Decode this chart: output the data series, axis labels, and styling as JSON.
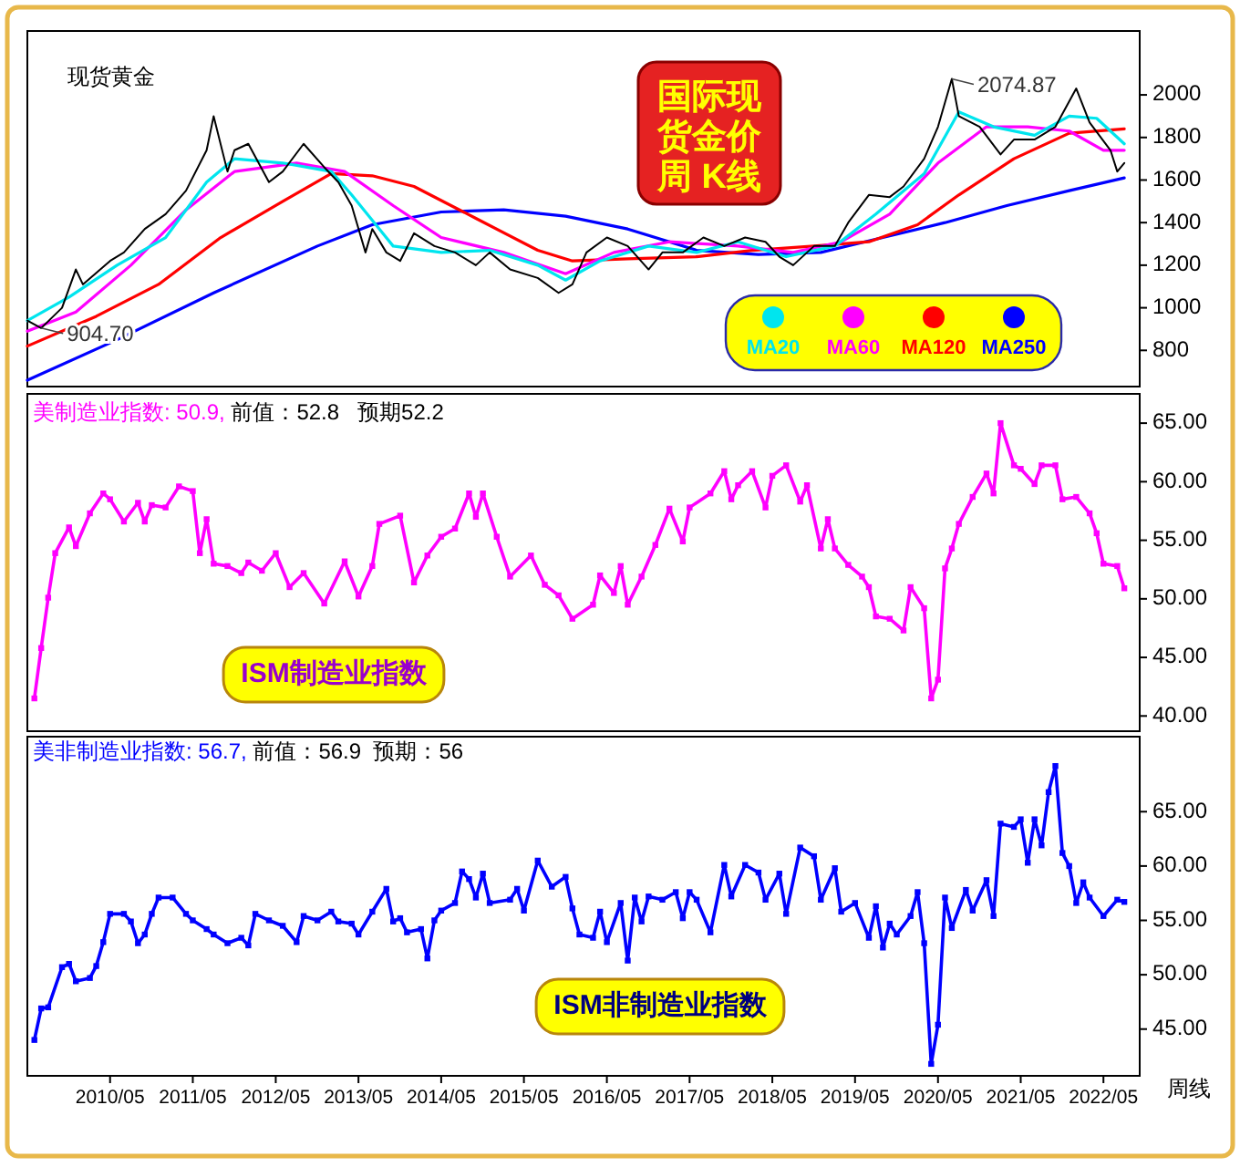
{
  "chart_data": [
    {
      "type": "line",
      "title": "现货黄金",
      "xlim": [
        "2009-05-01",
        "2022-10-08"
      ],
      "ylim": [
        630,
        2300
      ],
      "yticks": [
        800,
        1000,
        1200,
        1400,
        1600,
        1800,
        2000
      ],
      "tick_labels": "y",
      "legend": "bottom right",
      "annotations": [
        {
          "text": "2074.87",
          "x": "2020-07",
          "y": 2074.87
        },
        {
          "text": "904.70",
          "x": "2009-07",
          "y": 904.7
        },
        "国际现货金价周 K线"
      ],
      "series": [
        {
          "color": "#000000",
          "x": [
            "2009-05",
            "2009-07",
            "2009-10",
            "2009-12",
            "2010-01",
            "2010-05",
            "2010-07",
            "2010-10",
            "2011-01",
            "2011-04",
            "2011-07",
            "2011-08",
            "2011-10",
            "2011-11",
            "2012-01",
            "2012-04",
            "2012-06",
            "2012-09",
            "2012-12",
            "2013-02",
            "2013-04",
            "2013-06",
            "2013-07",
            "2013-09",
            "2013-11",
            "2014-01",
            "2014-04",
            "2014-07",
            "2014-10",
            "2014-12",
            "2015-03",
            "2015-07",
            "2015-10",
            "2015-12",
            "2016-02",
            "2016-05",
            "2016-08",
            "2016-11",
            "2017-01",
            "2017-04",
            "2017-07",
            "2017-10",
            "2018-01",
            "2018-04",
            "2018-06",
            "2018-08",
            "2018-11",
            "2019-02",
            "2019-04",
            "2019-07",
            "2019-10",
            "2019-12",
            "2020-03",
            "2020-05",
            "2020-07",
            "2020-08",
            "2020-11",
            "2021-02",
            "2021-04",
            "2021-07",
            "2021-10",
            "2022-01",
            "2022-03",
            "2022-06",
            "2022-07",
            "2022-08"
          ],
          "values": [
            940,
            904.7,
            1000,
            1180,
            1110,
            1220,
            1260,
            1370,
            1440,
            1550,
            1740,
            1900,
            1640,
            1740,
            1770,
            1590,
            1640,
            1770,
            1660,
            1590,
            1480,
            1260,
            1370,
            1260,
            1220,
            1350,
            1290,
            1260,
            1200,
            1260,
            1180,
            1140,
            1070,
            1110,
            1260,
            1330,
            1290,
            1180,
            1260,
            1260,
            1330,
            1290,
            1330,
            1310,
            1240,
            1200,
            1290,
            1290,
            1400,
            1530,
            1520,
            1570,
            1700,
            1850,
            2074.87,
            1900,
            1850,
            1720,
            1790,
            1790,
            1850,
            2030,
            1870,
            1740,
            1640,
            1680
          ]
        },
        {
          "name": "MA20",
          "color": "#00e5ee",
          "x": [
            "2009-05",
            "2009-11",
            "2010-06",
            "2011-01",
            "2011-07",
            "2011-11",
            "2012-06",
            "2013-01",
            "2013-04",
            "2013-10",
            "2014-05",
            "2014-12",
            "2015-07",
            "2015-11",
            "2016-04",
            "2016-11",
            "2017-06",
            "2017-12",
            "2018-07",
            "2019-02",
            "2019-08",
            "2020-03",
            "2020-08",
            "2021-01",
            "2021-07",
            "2021-12",
            "2022-04",
            "2022-08"
          ],
          "values": [
            940,
            1050,
            1200,
            1330,
            1590,
            1700,
            1680,
            1640,
            1530,
            1290,
            1260,
            1270,
            1200,
            1130,
            1220,
            1290,
            1260,
            1310,
            1240,
            1290,
            1440,
            1630,
            1920,
            1850,
            1810,
            1900,
            1890,
            1770
          ]
        },
        {
          "name": "MA60",
          "color": "#ff00ff",
          "x": [
            "2009-05",
            "2009-12",
            "2010-08",
            "2011-04",
            "2011-11",
            "2012-08",
            "2013-03",
            "2013-10",
            "2014-05",
            "2015-02",
            "2015-11",
            "2016-06",
            "2017-02",
            "2017-12",
            "2018-08",
            "2019-03",
            "2019-10",
            "2020-05",
            "2020-12",
            "2021-06",
            "2021-12",
            "2022-05",
            "2022-08"
          ],
          "values": [
            890,
            980,
            1200,
            1460,
            1640,
            1680,
            1640,
            1480,
            1330,
            1260,
            1160,
            1260,
            1310,
            1290,
            1260,
            1310,
            1440,
            1680,
            1850,
            1850,
            1830,
            1740,
            1740
          ]
        },
        {
          "name": "MA120",
          "color": "#ff0000",
          "x": [
            "2009-05",
            "2010-03",
            "2010-12",
            "2011-09",
            "2012-06",
            "2013-01",
            "2013-07",
            "2014-01",
            "2014-10",
            "2015-07",
            "2015-12",
            "2016-08",
            "2017-06",
            "2018-02",
            "2018-11",
            "2019-07",
            "2020-02",
            "2020-08",
            "2021-04",
            "2021-12",
            "2022-08"
          ],
          "values": [
            820,
            960,
            1110,
            1330,
            1500,
            1630,
            1620,
            1570,
            1420,
            1270,
            1220,
            1230,
            1240,
            1270,
            1290,
            1310,
            1390,
            1530,
            1700,
            1820,
            1840
          ]
        },
        {
          "name": "MA250",
          "color": "#0000ff",
          "x": [
            "2009-05",
            "2010-06",
            "2011-08",
            "2012-11",
            "2013-07",
            "2014-05",
            "2015-02",
            "2015-11",
            "2016-08",
            "2017-06",
            "2018-03",
            "2018-12",
            "2019-09",
            "2020-06",
            "2021-03",
            "2021-12",
            "2022-08"
          ],
          "values": [
            660,
            850,
            1070,
            1290,
            1390,
            1450,
            1460,
            1430,
            1370,
            1270,
            1250,
            1260,
            1330,
            1400,
            1480,
            1550,
            1610
          ]
        }
      ]
    },
    {
      "type": "line",
      "title": "美制造业指数: 50.9,",
      "subtitle": " 前值：52.8   预期52.2",
      "xlim": [
        "2009-05-01",
        "2022-10-08"
      ],
      "ylim": [
        38.7,
        67.5
      ],
      "yticks": [
        {
          "value": 40,
          "label": "40.00"
        },
        {
          "value": 45,
          "label": "45.00"
        },
        {
          "value": 50,
          "label": "50.00"
        },
        {
          "value": 55,
          "label": "55.00"
        },
        {
          "value": 60,
          "label": "60.00"
        },
        {
          "value": 65,
          "label": "65.00"
        }
      ],
      "tick_labels": "y",
      "marker": "square",
      "annotations": [
        "ISM制造业指数"
      ],
      "series": [
        {
          "color": "#ff00ff",
          "x": [
            "2009-06",
            "2009-07",
            "2009-08",
            "2009-09",
            "2009-11",
            "2009-12",
            "2010-02",
            "2010-04",
            "2010-05",
            "2010-07",
            "2010-09",
            "2010-10",
            "2010-11",
            "2011-01",
            "2011-03",
            "2011-05",
            "2011-06",
            "2011-07",
            "2011-08",
            "2011-10",
            "2011-12",
            "2012-01",
            "2012-03",
            "2012-05",
            "2012-07",
            "2012-09",
            "2012-12",
            "2013-03",
            "2013-05",
            "2013-07",
            "2013-08",
            "2013-11",
            "2014-01",
            "2014-03",
            "2014-05",
            "2014-07",
            "2014-09",
            "2014-10",
            "2014-11",
            "2015-01",
            "2015-03",
            "2015-06",
            "2015-08",
            "2015-10",
            "2015-12",
            "2016-03",
            "2016-04",
            "2016-06",
            "2016-07",
            "2016-08",
            "2016-10",
            "2016-12",
            "2017-02",
            "2017-04",
            "2017-05",
            "2017-08",
            "2017-10",
            "2017-11",
            "2017-12",
            "2018-02",
            "2018-04",
            "2018-05",
            "2018-07",
            "2018-09",
            "2018-10",
            "2018-12",
            "2019-01",
            "2019-02",
            "2019-04",
            "2019-06",
            "2019-07",
            "2019-08",
            "2019-10",
            "2019-12",
            "2020-01",
            "2020-03",
            "2020-04",
            "2020-05",
            "2020-06",
            "2020-07",
            "2020-08",
            "2020-10",
            "2020-12",
            "2021-01",
            "2021-02",
            "2021-04",
            "2021-05",
            "2021-07",
            "2021-08",
            "2021-10",
            "2021-11",
            "2022-01",
            "2022-03",
            "2022-04",
            "2022-05",
            "2022-07",
            "2022-08"
          ],
          "values": [
            41.5,
            45.8,
            50.1,
            53.9,
            56.1,
            54.5,
            57.3,
            59.0,
            58.5,
            56.6,
            58.2,
            56.6,
            58.0,
            57.8,
            59.6,
            59.2,
            53.9,
            56.8,
            53.0,
            52.8,
            52.2,
            53.1,
            52.4,
            53.9,
            51.0,
            52.2,
            49.6,
            53.2,
            50.2,
            52.8,
            56.4,
            57.1,
            51.4,
            53.7,
            55.3,
            56.0,
            59.0,
            57.0,
            59.0,
            55.3,
            51.9,
            53.7,
            51.2,
            50.3,
            48.3,
            49.5,
            52.0,
            50.5,
            52.8,
            49.5,
            51.9,
            54.6,
            57.7,
            54.9,
            57.8,
            59.0,
            60.9,
            58.5,
            59.7,
            60.9,
            57.8,
            60.5,
            61.4,
            58.3,
            59.7,
            54.3,
            56.8,
            54.3,
            52.9,
            51.9,
            51.0,
            48.5,
            48.3,
            47.3,
            51.0,
            49.2,
            41.5,
            43.1,
            52.6,
            54.3,
            56.4,
            58.7,
            60.7,
            59.0,
            65.0,
            61.4,
            61.1,
            59.8,
            61.4,
            61.4,
            58.5,
            58.7,
            57.3,
            55.6,
            53.0,
            52.8,
            50.9
          ]
        }
      ]
    },
    {
      "type": "line",
      "title": "美非制造业指数: 56.7,",
      "subtitle": " 前值：56.9  预期：56",
      "xlim": [
        "2009-05-01",
        "2022-10-08"
      ],
      "ylim": [
        40.7,
        71.9
      ],
      "yticks": [
        {
          "value": 45,
          "label": "45.00"
        },
        {
          "value": 50,
          "label": "50.00"
        },
        {
          "value": 55,
          "label": "55.00"
        },
        {
          "value": 60,
          "label": "60.00"
        },
        {
          "value": 65,
          "label": "65.00"
        }
      ],
      "xticks": [
        {
          "value": "2010-05",
          "label": "2010/05"
        },
        {
          "value": "2011-05",
          "label": "2011/05"
        },
        {
          "value": "2012-05",
          "label": "2012/05"
        },
        {
          "value": "2013-05",
          "label": "2013/05"
        },
        {
          "value": "2014-05",
          "label": "2014/05"
        },
        {
          "value": "2015-05",
          "label": "2015/05"
        },
        {
          "value": "2016-05",
          "label": "2016/05"
        },
        {
          "value": "2017-05",
          "label": "2017/05"
        },
        {
          "value": "2018-05",
          "label": "2018/05"
        },
        {
          "value": "2019-05",
          "label": "2019/05"
        },
        {
          "value": "2020-05",
          "label": "2020/05"
        },
        {
          "value": "2021-05",
          "label": "2021/05"
        },
        {
          "value": "2022-05",
          "label": "2022/05"
        }
      ],
      "marker": "square",
      "annotations": [
        "ISM非制造业指数",
        "周线"
      ],
      "series": [
        {
          "color": "#0000ff",
          "x": [
            "2009-06",
            "2009-07",
            "2009-08",
            "2009-10",
            "2009-11",
            "2009-12",
            "2010-02",
            "2010-03",
            "2010-04",
            "2010-05",
            "2010-07",
            "2010-08",
            "2010-09",
            "2010-10",
            "2010-11",
            "2010-12",
            "2011-02",
            "2011-04",
            "2011-05",
            "2011-07",
            "2011-08",
            "2011-10",
            "2011-12",
            "2012-01",
            "2012-02",
            "2012-04",
            "2012-06",
            "2012-08",
            "2012-09",
            "2012-11",
            "2013-01",
            "2013-02",
            "2013-04",
            "2013-05",
            "2013-07",
            "2013-09",
            "2013-10",
            "2013-11",
            "2013-12",
            "2014-02",
            "2014-03",
            "2014-04",
            "2014-05",
            "2014-07",
            "2014-08",
            "2014-09",
            "2014-10",
            "2014-11",
            "2014-12",
            "2015-03",
            "2015-04",
            "2015-05",
            "2015-07",
            "2015-09",
            "2015-11",
            "2015-12",
            "2016-01",
            "2016-03",
            "2016-04",
            "2016-05",
            "2016-07",
            "2016-08",
            "2016-09",
            "2016-10",
            "2016-11",
            "2017-01",
            "2017-03",
            "2017-04",
            "2017-05",
            "2017-06",
            "2017-08",
            "2017-10",
            "2017-11",
            "2018-01",
            "2018-03",
            "2018-04",
            "2018-06",
            "2018-07",
            "2018-09",
            "2018-11",
            "2018-12",
            "2019-02",
            "2019-03",
            "2019-05",
            "2019-07",
            "2019-08",
            "2019-09",
            "2019-10",
            "2019-11",
            "2020-01",
            "2020-02",
            "2020-03",
            "2020-04",
            "2020-05",
            "2020-06",
            "2020-07",
            "2020-09",
            "2020-10",
            "2020-12",
            "2021-01",
            "2021-02",
            "2021-04",
            "2021-05",
            "2021-06",
            "2021-07",
            "2021-08",
            "2021-09",
            "2021-10",
            "2021-11",
            "2021-12",
            "2022-01",
            "2022-02",
            "2022-03",
            "2022-05",
            "2022-07",
            "2022-08"
          ],
          "values": [
            44.0,
            46.9,
            47.0,
            50.7,
            51.0,
            49.4,
            49.7,
            50.8,
            53.0,
            55.6,
            55.6,
            54.9,
            52.9,
            53.7,
            55.6,
            57.1,
            57.1,
            55.6,
            55.0,
            54.2,
            53.7,
            52.9,
            53.4,
            52.7,
            55.6,
            55.0,
            54.5,
            53.0,
            55.4,
            55.0,
            55.8,
            54.9,
            54.7,
            53.7,
            55.8,
            57.9,
            54.9,
            55.2,
            53.9,
            54.2,
            51.5,
            55.0,
            55.9,
            56.6,
            59.5,
            58.8,
            57.1,
            59.3,
            56.6,
            56.9,
            57.9,
            55.9,
            60.5,
            58.1,
            59.0,
            56.1,
            53.7,
            53.4,
            55.8,
            53.0,
            56.6,
            51.3,
            57.1,
            54.9,
            57.2,
            56.9,
            57.6,
            55.2,
            57.6,
            56.9,
            53.9,
            60.1,
            57.2,
            60.1,
            59.4,
            56.9,
            59.3,
            55.6,
            61.7,
            60.9,
            56.9,
            59.8,
            55.8,
            56.6,
            53.4,
            56.3,
            52.5,
            54.7,
            53.7,
            55.4,
            57.6,
            52.9,
            41.8,
            45.4,
            57.1,
            54.3,
            57.8,
            55.9,
            58.7,
            55.4,
            63.9,
            63.6,
            64.3,
            60.3,
            64.3,
            61.9,
            66.8,
            69.2,
            61.2,
            60.0,
            56.6,
            58.5,
            57.1,
            55.4,
            56.9,
            56.7
          ]
        }
      ]
    }
  ]
}
